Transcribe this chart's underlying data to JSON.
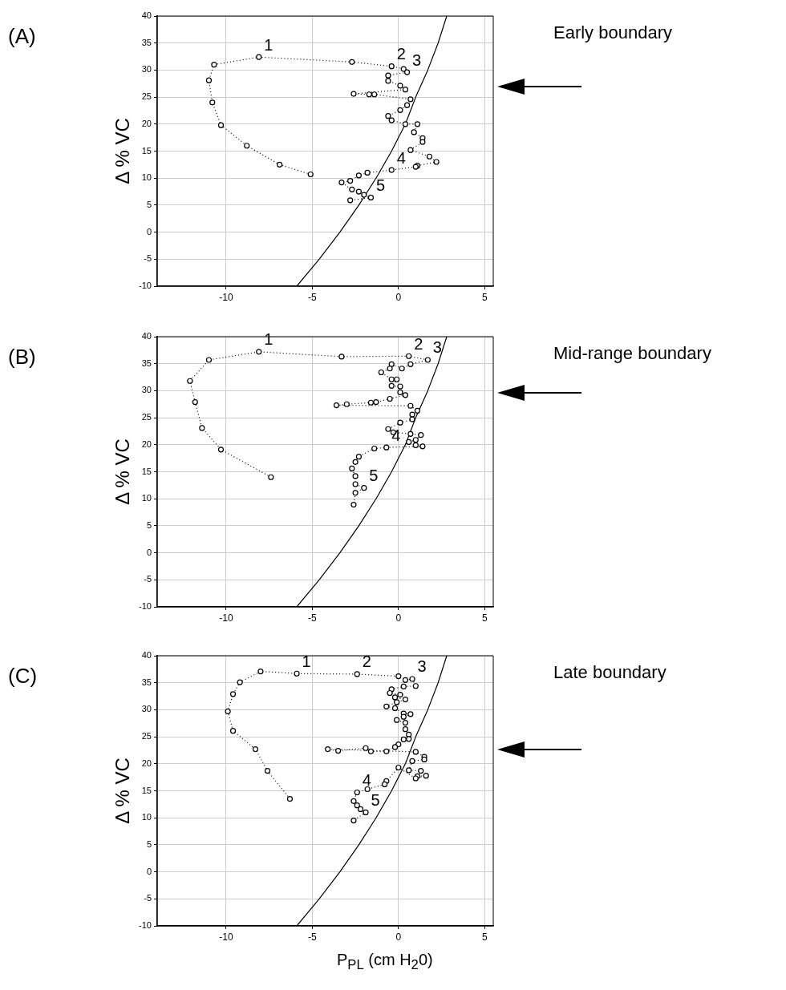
{
  "chart_data": [
    {
      "type": "line",
      "title": "(A)",
      "ylabel": "Δ % VC",
      "xlim": [
        -14,
        5.5
      ],
      "xticks": [
        -10,
        -5,
        0,
        5
      ],
      "ylim": [
        -10,
        40
      ],
      "yticks": [
        -10,
        -5,
        0,
        5,
        10,
        15,
        20,
        25,
        30,
        35,
        40
      ],
      "grid": true,
      "legend": false,
      "series": [
        {
          "type": "line",
          "color": "#000000",
          "marker": "circle",
          "line_style": "dotted",
          "x": [
            -5.1,
            -6.9,
            -8.8,
            -10.3,
            -10.8,
            -11.0,
            -10.7,
            -8.1,
            -2.7,
            -0.4,
            0.3,
            0.5,
            -0.6,
            -0.6,
            0.1,
            0.4,
            -2.6,
            -1.7,
            -1.4,
            0.7,
            0.5,
            0.1,
            -0.6,
            -0.4,
            0.4,
            1.1,
            0.9,
            1.4,
            1.4,
            0.7,
            1.8,
            2.2,
            1.1,
            1.0,
            -0.4,
            -1.8,
            -2.3,
            -2.8,
            -3.3,
            -2.7,
            -2.3,
            -2.0,
            -1.6,
            -2.8
          ],
          "values": [
            10.7,
            12.5,
            16.0,
            19.8,
            24.0,
            28.1,
            31.0,
            32.4,
            31.5,
            30.7,
            30.2,
            29.6,
            29.0,
            28.0,
            27.1,
            26.4,
            25.6,
            25.5,
            25.5,
            24.6,
            23.5,
            22.6,
            21.5,
            20.7,
            20.0,
            20.0,
            18.5,
            17.4,
            16.7,
            15.2,
            14.0,
            13.0,
            12.3,
            12.1,
            11.5,
            11.0,
            10.5,
            9.5,
            9.2,
            7.9,
            7.5,
            6.9,
            6.4,
            5.9
          ]
        },
        {
          "type": "line",
          "color": "#000000",
          "marker": "none",
          "line_style": "solid",
          "x": [
            -5.9,
            -4.6,
            -3.4,
            -2.3,
            -1.3,
            -0.4,
            0.4,
            1.0,
            1.7,
            2.3,
            2.8
          ],
          "values": [
            -10,
            -5,
            0,
            5,
            10,
            15,
            20,
            25,
            30,
            35,
            40
          ]
        }
      ],
      "annotations": [
        {
          "text": "1",
          "x": -8.1,
          "y": 32.4
        },
        {
          "text": "2",
          "x": -0.4,
          "y": 30.7
        },
        {
          "text": "3",
          "x": 0.5,
          "y": 29.6
        },
        {
          "text": "4",
          "x": -0.4,
          "y": 11.5
        },
        {
          "text": "5",
          "x": -1.6,
          "y": 6.4
        },
        "Early boundary"
      ]
    },
    {
      "type": "line",
      "title": "(B)",
      "ylabel": "Δ % VC",
      "xlim": [
        -14,
        5.5
      ],
      "xticks": [
        -10,
        -5,
        0,
        5
      ],
      "ylim": [
        -10,
        40
      ],
      "yticks": [
        -10,
        -5,
        0,
        5,
        10,
        15,
        20,
        25,
        30,
        35,
        40
      ],
      "grid": true,
      "legend": false,
      "series": [
        {
          "type": "line",
          "color": "#000000",
          "marker": "circle",
          "line_style": "dotted",
          "x": [
            -7.4,
            -10.3,
            -11.4,
            -11.8,
            -12.1,
            -11.0,
            -8.1,
            -3.3,
            0.6,
            1.7,
            0.7,
            0.2,
            -0.4,
            -0.5,
            -1.0,
            -0.4,
            -0.1,
            -0.4,
            0.1,
            0.1,
            0.4,
            -0.5,
            -1.3,
            -1.6,
            -3.0,
            -3.6,
            0.7,
            1.1,
            0.8,
            0.8,
            0.1,
            -0.6,
            -0.3,
            0.7,
            1.3,
            1.0,
            0.6,
            1.0,
            1.4,
            -0.7,
            -1.4,
            -2.3,
            -2.5,
            -2.7,
            -2.5,
            -2.5,
            -2.0,
            -2.5,
            -2.6
          ],
          "values": [
            14.0,
            19.1,
            23.1,
            27.9,
            31.8,
            35.7,
            37.2,
            36.3,
            36.4,
            35.7,
            34.9,
            34.1,
            34.9,
            34.1,
            33.4,
            32.1,
            32.1,
            30.9,
            30.8,
            29.7,
            29.2,
            28.5,
            27.9,
            27.8,
            27.5,
            27.3,
            27.2,
            26.3,
            25.6,
            24.7,
            24.1,
            22.9,
            22.3,
            22.0,
            21.8,
            20.9,
            20.5,
            19.9,
            19.7,
            19.5,
            19.3,
            17.8,
            16.8,
            15.6,
            14.2,
            12.7,
            12.0,
            11.1,
            8.9
          ]
        },
        {
          "type": "line",
          "color": "#000000",
          "marker": "none",
          "line_style": "solid",
          "x": [
            -5.9,
            -4.6,
            -3.4,
            -2.3,
            -1.3,
            -0.4,
            0.4,
            1.0,
            1.7,
            2.3,
            2.8
          ],
          "values": [
            -10,
            -5,
            0,
            5,
            10,
            15,
            20,
            25,
            30,
            35,
            40
          ]
        }
      ],
      "annotations": [
        {
          "text": "1",
          "x": -8.1,
          "y": 37.2
        },
        {
          "text": "2",
          "x": 0.6,
          "y": 36.4
        },
        {
          "text": "3",
          "x": 1.7,
          "y": 35.7
        },
        {
          "text": "4",
          "x": -0.7,
          "y": 19.5
        },
        {
          "text": "5",
          "x": -2.0,
          "y": 12.0
        },
        "Mid-range boundary"
      ]
    },
    {
      "type": "line",
      "title": "(C)",
      "xlabel": "P$_{PL}$ (cm H$_{2}$0)",
      "ylabel": "Δ % VC",
      "xlim": [
        -14,
        5.5
      ],
      "xticks": [
        -10,
        -5,
        0,
        5
      ],
      "ylim": [
        -10,
        40
      ],
      "yticks": [
        -10,
        -5,
        0,
        5,
        10,
        15,
        20,
        25,
        30,
        35,
        40
      ],
      "grid": true,
      "legend": false,
      "series": [
        {
          "type": "line",
          "color": "#000000",
          "marker": "circle",
          "line_style": "dotted",
          "x": [
            -6.3,
            -7.6,
            -8.3,
            -9.6,
            -9.9,
            -9.6,
            -9.2,
            -8.0,
            -5.9,
            -2.4,
            0.0,
            0.4,
            0.8,
            1.0,
            0.3,
            -0.4,
            -0.5,
            0.1,
            -0.2,
            0.4,
            -0.1,
            -0.7,
            -0.2,
            0.3,
            0.7,
            0.3,
            -0.1,
            0.4,
            0.4,
            0.6,
            0.6,
            0.3,
            0.0,
            -0.2,
            -0.7,
            -1.6,
            -1.9,
            -3.5,
            -4.1,
            1.0,
            1.5,
            1.5,
            0.8,
            0.6,
            1.3,
            1.1,
            1.6,
            1.0,
            0.0,
            -0.7,
            -0.8,
            -1.8,
            -2.4,
            -2.6,
            -2.4,
            -2.2,
            -1.9,
            -2.6
          ],
          "values": [
            13.5,
            18.7,
            22.7,
            26.1,
            29.7,
            32.9,
            35.1,
            37.1,
            36.7,
            36.6,
            36.2,
            35.5,
            35.7,
            34.4,
            34.3,
            33.8,
            33.1,
            32.8,
            32.3,
            31.9,
            31.4,
            30.6,
            30.3,
            29.3,
            29.2,
            28.7,
            28.1,
            27.6,
            26.4,
            25.4,
            24.6,
            24.5,
            23.6,
            23.1,
            22.3,
            22.3,
            22.9,
            22.4,
            22.7,
            22.2,
            21.3,
            20.8,
            20.5,
            18.8,
            18.7,
            17.7,
            17.8,
            17.3,
            19.3,
            16.8,
            16.2,
            15.3,
            14.7,
            13.1,
            12.3,
            11.6,
            11.0,
            9.5
          ]
        },
        {
          "type": "line",
          "color": "#000000",
          "marker": "none",
          "line_style": "solid",
          "x": [
            -5.9,
            -4.6,
            -3.4,
            -2.3,
            -1.3,
            -0.4,
            0.4,
            1.0,
            1.7,
            2.3,
            2.8
          ],
          "values": [
            -10,
            -5,
            0,
            5,
            10,
            15,
            20,
            25,
            30,
            35,
            40
          ]
        }
      ],
      "annotations": [
        {
          "text": "1",
          "x": -5.9,
          "y": 36.7
        },
        {
          "text": "2",
          "x": -2.4,
          "y": 36.6
        },
        {
          "text": "3",
          "x": 0.8,
          "y": 35.7
        },
        {
          "text": "4",
          "x": -2.4,
          "y": 14.7
        },
        {
          "text": "5",
          "x": -1.9,
          "y": 11.0
        },
        "Late boundary"
      ]
    }
  ]
}
